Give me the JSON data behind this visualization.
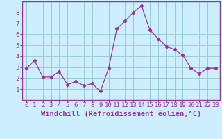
{
  "x": [
    0,
    1,
    2,
    3,
    4,
    5,
    6,
    7,
    8,
    9,
    10,
    11,
    12,
    13,
    14,
    15,
    16,
    17,
    18,
    19,
    20,
    21,
    22,
    23
  ],
  "y": [
    2.9,
    3.6,
    2.1,
    2.1,
    2.6,
    1.4,
    1.7,
    1.3,
    1.5,
    0.8,
    2.9,
    6.5,
    7.2,
    8.0,
    8.6,
    6.4,
    5.6,
    4.9,
    4.6,
    4.1,
    2.9,
    2.4,
    2.9,
    2.9
  ],
  "line_color": "#993399",
  "marker": "D",
  "marker_size": 2.2,
  "bg_color": "#cceeff",
  "grid_color": "#99cccc",
  "axis_color": "#993399",
  "xlabel": "Windchill (Refroidissement éolien,°C)",
  "ylabel": "",
  "title": "",
  "xlim_min": -0.5,
  "xlim_max": 23.5,
  "ylim_min": 0,
  "ylim_max": 9,
  "yticks": [
    1,
    2,
    3,
    4,
    5,
    6,
    7,
    8
  ],
  "xticks": [
    0,
    1,
    2,
    3,
    4,
    5,
    6,
    7,
    8,
    9,
    10,
    11,
    12,
    13,
    14,
    15,
    16,
    17,
    18,
    19,
    20,
    21,
    22,
    23
  ],
  "tick_label_fontsize": 6.5,
  "xlabel_fontsize": 7.5
}
